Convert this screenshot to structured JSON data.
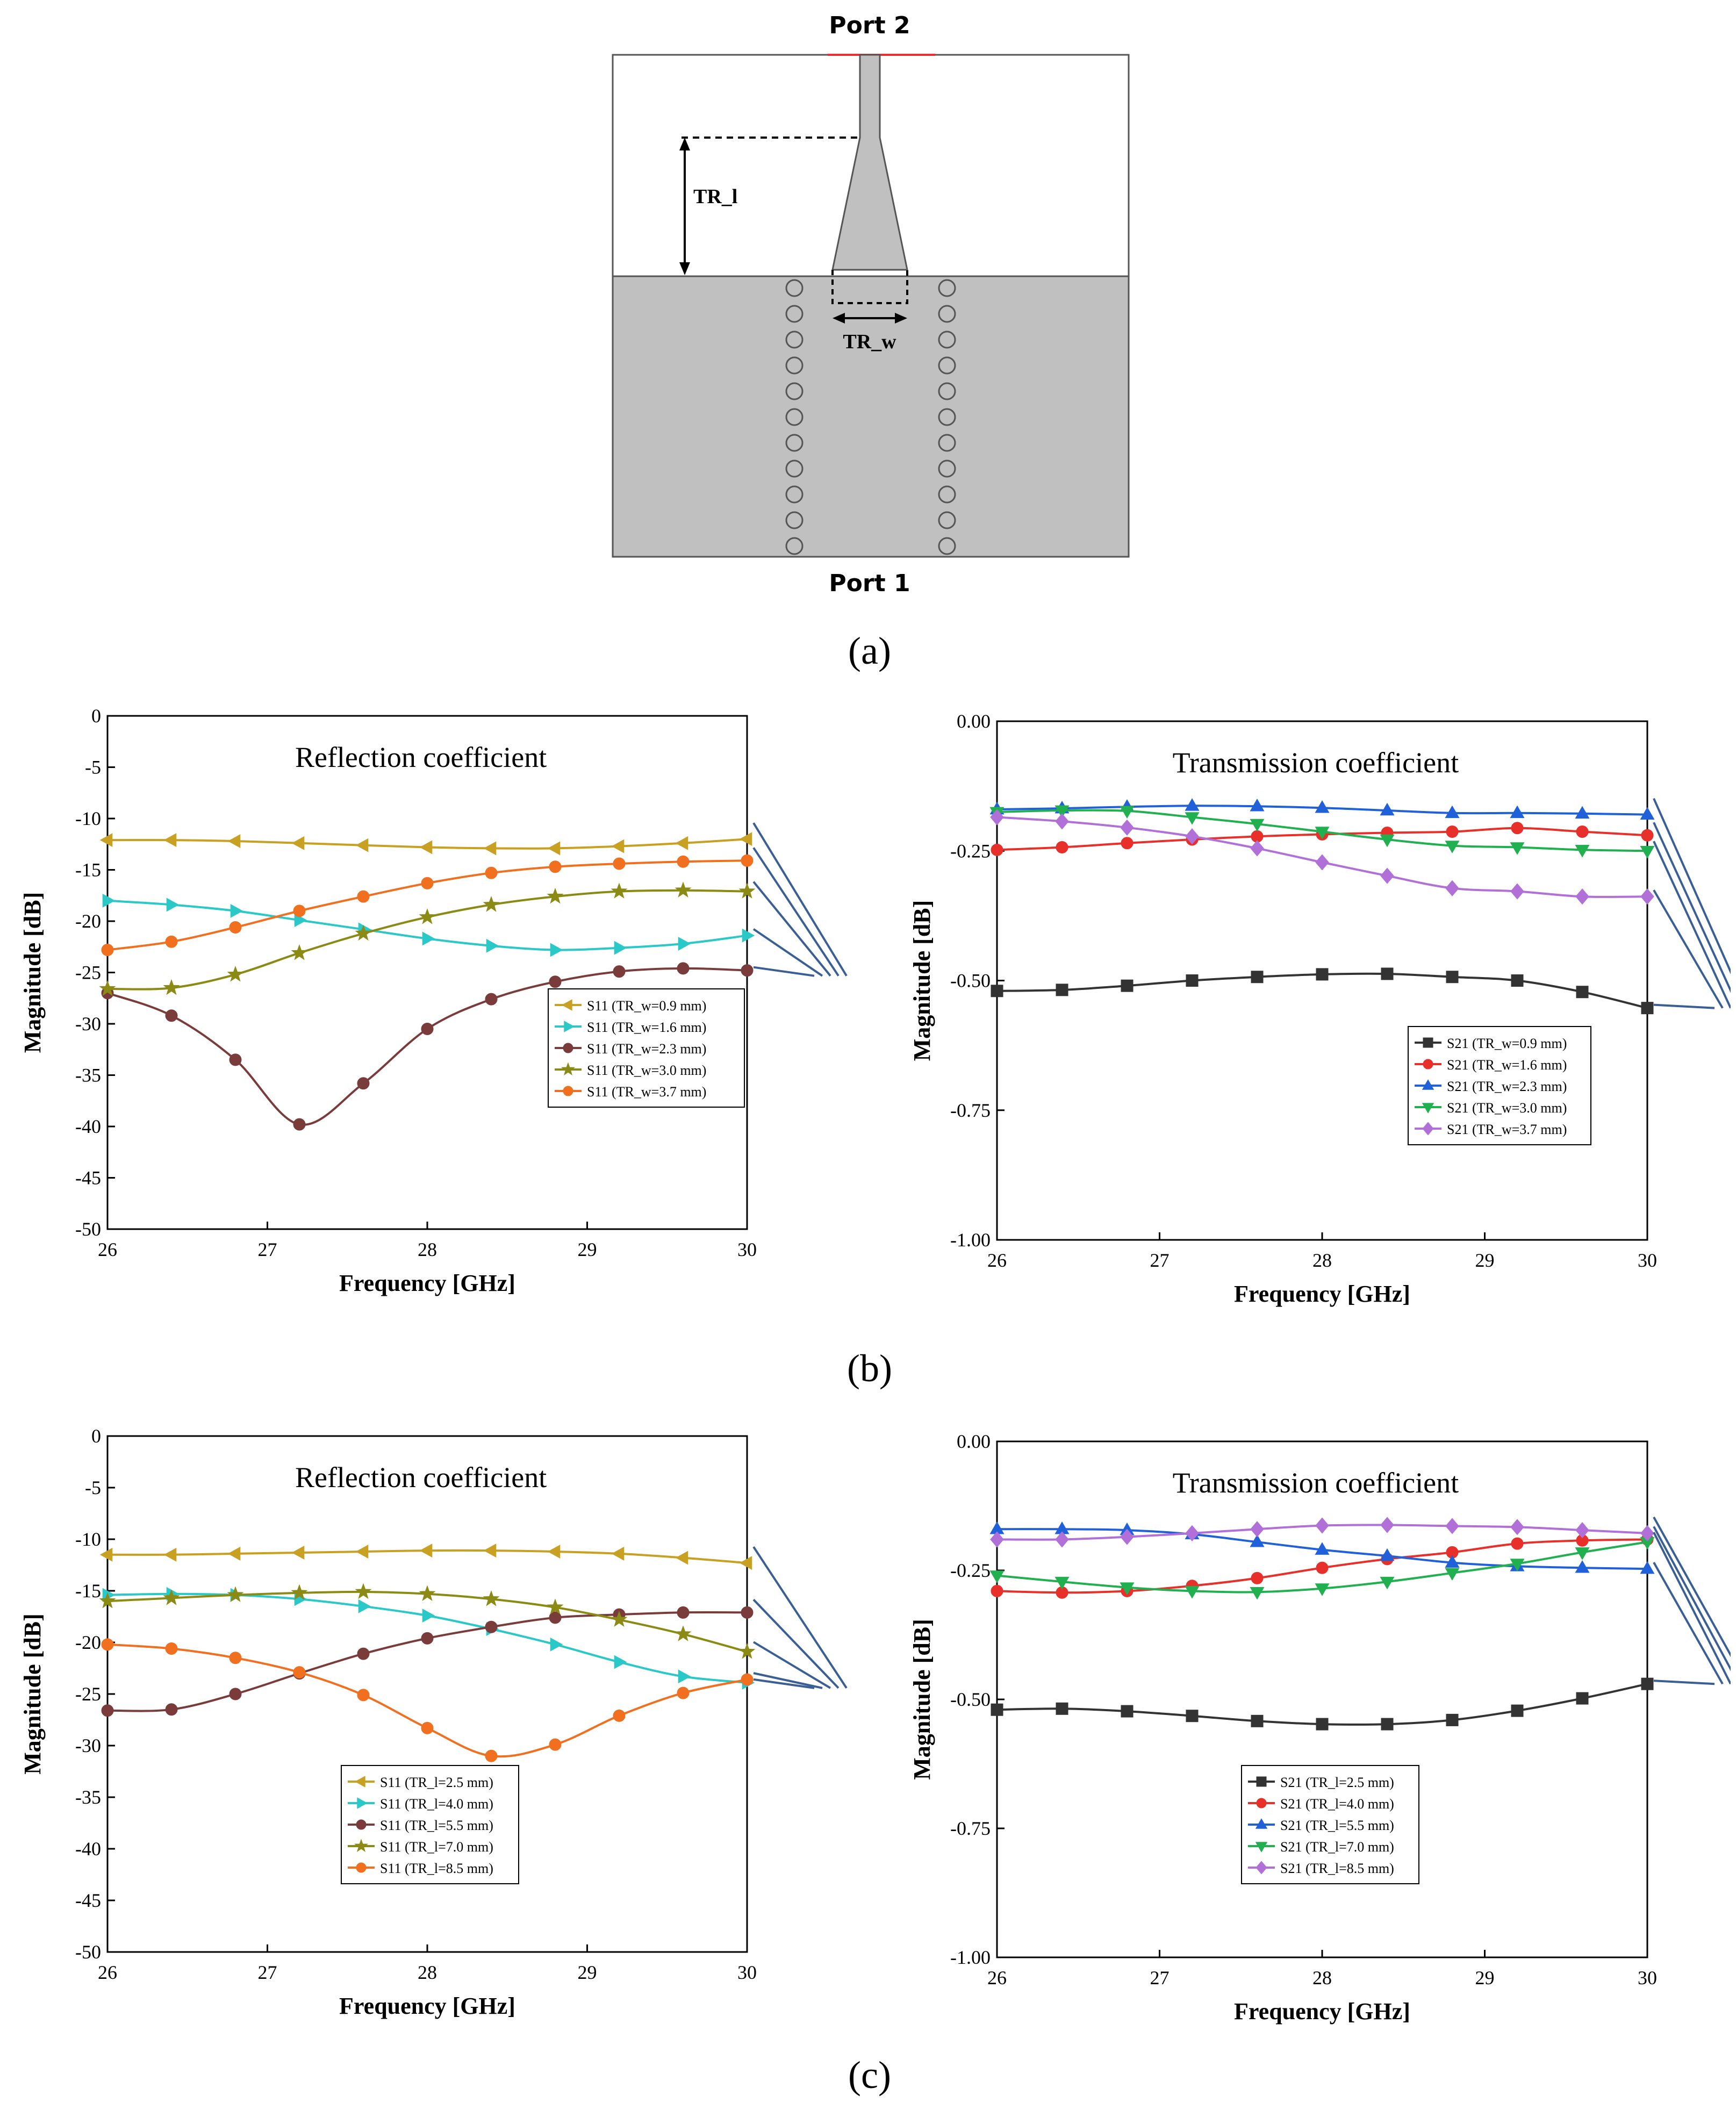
{
  "figure_a": {
    "port_top": "Port 2",
    "port_bottom": "Port 1",
    "dim_length": "TR_l",
    "dim_width": "TR_w",
    "caption": "(a)"
  },
  "caption_b": "(b)",
  "caption_c": "(c)",
  "chart_data": [
    {
      "id": "b-left",
      "type": "line",
      "title": "Reflection coefficient",
      "xlabel": "Frequency [GHz]",
      "ylabel": "Magnitude [dB]",
      "xlim": [
        26,
        30
      ],
      "ylim": [
        -50,
        0
      ],
      "xticks": [
        "26",
        "27",
        "28",
        "29",
        "30"
      ],
      "yticks": [
        "0",
        "-5",
        "-10",
        "-15",
        "-20",
        "-25",
        "-30",
        "-35",
        "-40",
        "-45",
        "-50"
      ],
      "x": [
        26,
        26.4,
        26.8,
        27.2,
        27.6,
        28,
        28.4,
        28.8,
        29.2,
        29.6,
        30
      ],
      "series": [
        {
          "name": "S11 (TR_w=0.9 mm)",
          "color": "#c8a022",
          "marker": "tri-left",
          "values": [
            -12.1,
            -12.1,
            -12.2,
            -12.4,
            -12.6,
            -12.8,
            -12.9,
            -12.9,
            -12.7,
            -12.4,
            -12.0
          ]
        },
        {
          "name": "S11 (TR_w=1.6 mm)",
          "color": "#2bc8c8",
          "marker": "tri-right",
          "values": [
            -18.0,
            -18.4,
            -19.0,
            -19.9,
            -20.8,
            -21.7,
            -22.4,
            -22.8,
            -22.6,
            -22.2,
            -21.4
          ]
        },
        {
          "name": "S11 (TR_w=2.3 mm)",
          "color": "#7a3b3b",
          "marker": "circle",
          "values": [
            -27.0,
            -29.2,
            -33.5,
            -39.8,
            -35.8,
            -30.5,
            -27.6,
            -25.9,
            -24.9,
            -24.6,
            -24.8
          ]
        },
        {
          "name": "S11 (TR_w=3.0 mm)",
          "color": "#8a8a14",
          "marker": "star",
          "values": [
            -26.6,
            -26.5,
            -25.2,
            -23.1,
            -21.2,
            -19.6,
            -18.4,
            -17.6,
            -17.1,
            -17.0,
            -17.1
          ]
        },
        {
          "name": "S11 (TR_w=3.7 mm)",
          "color": "#f07020",
          "marker": "circle",
          "values": [
            -22.8,
            -22.0,
            -20.6,
            -19.0,
            -17.6,
            -16.3,
            -15.3,
            -14.7,
            -14.4,
            -14.2,
            -14.1
          ]
        }
      ]
    },
    {
      "id": "b-right",
      "type": "line",
      "title": "Transmission coefficient",
      "xlabel": "Frequency [GHz]",
      "ylabel": "Magnitude [dB]",
      "xlim": [
        26,
        30
      ],
      "ylim": [
        -1.0,
        0.0
      ],
      "xticks": [
        "26",
        "27",
        "28",
        "29",
        "30"
      ],
      "yticks": [
        "0.00",
        "-0.25",
        "-0.50",
        "-0.75",
        "-1.00"
      ],
      "x": [
        26,
        26.4,
        26.8,
        27.2,
        27.6,
        28,
        28.4,
        28.8,
        29.2,
        29.6,
        30
      ],
      "series": [
        {
          "name": "S21 (TR_w=0.9 mm)",
          "color": "#333333",
          "marker": "square",
          "values": [
            -0.52,
            -0.518,
            -0.51,
            -0.5,
            -0.493,
            -0.488,
            -0.487,
            -0.493,
            -0.5,
            -0.522,
            -0.553
          ]
        },
        {
          "name": "S21 (TR_w=1.6 mm)",
          "color": "#e8302a",
          "marker": "circle",
          "values": [
            -0.248,
            -0.243,
            -0.235,
            -0.228,
            -0.222,
            -0.218,
            -0.215,
            -0.213,
            -0.206,
            -0.213,
            -0.22
          ]
        },
        {
          "name": "S21 (TR_w=2.3 mm)",
          "color": "#2060d8",
          "marker": "triangle-up",
          "values": [
            -0.17,
            -0.168,
            -0.165,
            -0.163,
            -0.164,
            -0.167,
            -0.172,
            -0.177,
            -0.177,
            -0.178,
            -0.18
          ]
        },
        {
          "name": "S21 (TR_w=3.0 mm)",
          "color": "#20b050",
          "marker": "triangle-down",
          "values": [
            -0.175,
            -0.172,
            -0.173,
            -0.185,
            -0.198,
            -0.213,
            -0.228,
            -0.24,
            -0.243,
            -0.248,
            -0.25
          ]
        },
        {
          "name": "S21 (TR_w=3.7 mm)",
          "color": "#b070d8",
          "marker": "diamond",
          "values": [
            -0.185,
            -0.193,
            -0.205,
            -0.222,
            -0.245,
            -0.272,
            -0.298,
            -0.322,
            -0.328,
            -0.338,
            -0.338
          ]
        }
      ]
    },
    {
      "id": "c-left",
      "type": "line",
      "title": "Reflection coefficient",
      "xlabel": "Frequency [GHz]",
      "ylabel": "Magnitude [dB]",
      "xlim": [
        26,
        30
      ],
      "ylim": [
        -50,
        0
      ],
      "xticks": [
        "26",
        "27",
        "28",
        "29",
        "30"
      ],
      "yticks": [
        "0",
        "-5",
        "-10",
        "-15",
        "-20",
        "-25",
        "-30",
        "-35",
        "-40",
        "-45",
        "-50"
      ],
      "x": [
        26,
        26.4,
        26.8,
        27.2,
        27.6,
        28,
        28.4,
        28.8,
        29.2,
        29.6,
        30
      ],
      "series": [
        {
          "name": "S11 (TR_l=2.5 mm)",
          "color": "#c8a022",
          "marker": "tri-left",
          "values": [
            -11.5,
            -11.5,
            -11.4,
            -11.3,
            -11.2,
            -11.1,
            -11.1,
            -11.2,
            -11.4,
            -11.8,
            -12.3
          ]
        },
        {
          "name": "S11 (TR_l=4.0 mm)",
          "color": "#2bc8c8",
          "marker": "tri-right",
          "values": [
            -15.4,
            -15.3,
            -15.4,
            -15.8,
            -16.5,
            -17.4,
            -18.7,
            -20.2,
            -21.9,
            -23.3,
            -23.9
          ]
        },
        {
          "name": "S11 (TR_l=5.5 mm)",
          "color": "#7a3b3b",
          "marker": "circle",
          "values": [
            -26.6,
            -26.5,
            -25.0,
            -23.0,
            -21.1,
            -19.6,
            -18.5,
            -17.6,
            -17.3,
            -17.1,
            -17.1
          ]
        },
        {
          "name": "S11 (TR_l=7.0 mm)",
          "color": "#8a8a14",
          "marker": "star",
          "values": [
            -16.0,
            -15.7,
            -15.4,
            -15.2,
            -15.1,
            -15.3,
            -15.8,
            -16.6,
            -17.8,
            -19.2,
            -20.9
          ]
        },
        {
          "name": "S11 (TR_l=8.5 mm)",
          "color": "#f07020",
          "marker": "circle",
          "values": [
            -20.2,
            -20.6,
            -21.5,
            -22.9,
            -25.1,
            -28.3,
            -31.0,
            -29.9,
            -27.1,
            -24.9,
            -23.6
          ]
        }
      ]
    },
    {
      "id": "c-right",
      "type": "line",
      "title": "Transmission coefficient",
      "xlabel": "Frequency [GHz]",
      "ylabel": "Magnitude [dB]",
      "xlim": [
        26,
        30
      ],
      "ylim": [
        -1.0,
        0.0
      ],
      "xticks": [
        "26",
        "27",
        "28",
        "29",
        "30"
      ],
      "yticks": [
        "0.00",
        "-0.25",
        "-0.50",
        "-0.75",
        "-1.00"
      ],
      "x": [
        26,
        26.4,
        26.8,
        27.2,
        27.6,
        28,
        28.4,
        28.8,
        29.2,
        29.6,
        30
      ],
      "series": [
        {
          "name": "S21 (TR_l=2.5 mm)",
          "color": "#333333",
          "marker": "square",
          "values": [
            -0.52,
            -0.518,
            -0.523,
            -0.532,
            -0.542,
            -0.548,
            -0.548,
            -0.54,
            -0.522,
            -0.498,
            -0.47
          ]
        },
        {
          "name": "S21 (TR_l=4.0 mm)",
          "color": "#e8302a",
          "marker": "circle",
          "values": [
            -0.29,
            -0.293,
            -0.29,
            -0.28,
            -0.265,
            -0.245,
            -0.228,
            -0.215,
            -0.198,
            -0.192,
            -0.19
          ]
        },
        {
          "name": "S21 (TR_l=5.5 mm)",
          "color": "#2060d8",
          "marker": "triangle-up",
          "values": [
            -0.17,
            -0.17,
            -0.172,
            -0.18,
            -0.195,
            -0.21,
            -0.222,
            -0.235,
            -0.242,
            -0.245,
            -0.247
          ]
        },
        {
          "name": "S21 (TR_l=7.0 mm)",
          "color": "#20b050",
          "marker": "triangle-down",
          "values": [
            -0.26,
            -0.272,
            -0.283,
            -0.29,
            -0.292,
            -0.285,
            -0.272,
            -0.255,
            -0.237,
            -0.215,
            -0.195
          ]
        },
        {
          "name": "S21 (TR_l=8.5 mm)",
          "color": "#b070d8",
          "marker": "diamond",
          "values": [
            -0.19,
            -0.19,
            -0.185,
            -0.178,
            -0.17,
            -0.163,
            -0.162,
            -0.164,
            -0.166,
            -0.172,
            -0.178
          ]
        }
      ]
    }
  ]
}
